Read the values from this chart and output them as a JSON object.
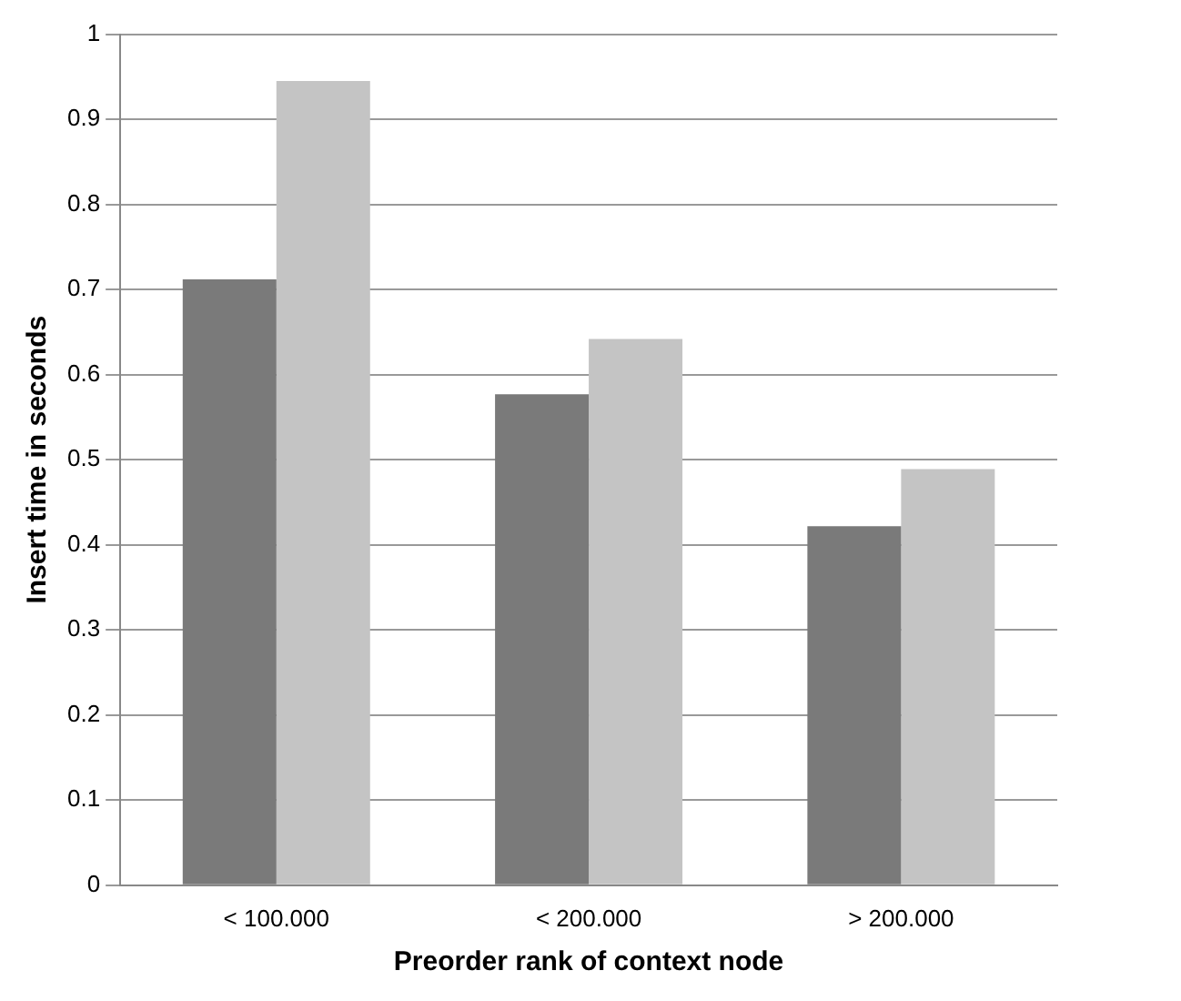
{
  "chart_data": {
    "type": "bar",
    "xlabel": "Preorder rank of context node",
    "ylabel": "Insert time in seconds",
    "categories": [
      "< 100.000",
      "< 200.000",
      "> 200.000"
    ],
    "series": [
      {
        "color": "#7a7a7a",
        "values": [
          0.712,
          0.577,
          0.422
        ]
      },
      {
        "color": "#c4c4c4",
        "values": [
          0.945,
          0.642,
          0.489
        ]
      }
    ],
    "ylim": [
      0,
      1
    ],
    "yticks": [
      0,
      0.1,
      0.2,
      0.3,
      0.4,
      0.5,
      0.6,
      0.7,
      0.8,
      0.9,
      1
    ],
    "grid": "y",
    "legend": false
  }
}
